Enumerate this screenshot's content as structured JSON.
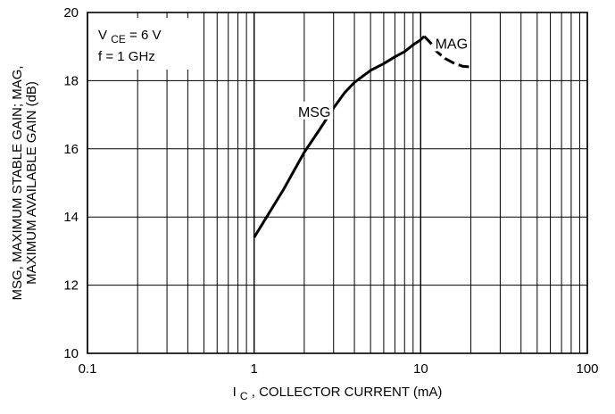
{
  "chart_data": {
    "type": "line",
    "title": "",
    "x_scale": "log",
    "xlim": [
      0.1,
      100
    ],
    "ylim": [
      10,
      20
    ],
    "grid": true,
    "xlabel": {
      "prefix": "I",
      "subscript": "C",
      "rest": ", COLLECTOR CURRENT (mA)"
    },
    "ylabel": {
      "line1": "MSG, MAXIMUM STABLE GAIN; MAG,",
      "line2": "MAXIMUM AVAILABLE GAIN (dB)"
    },
    "x_tick_labels": [
      {
        "value": 0.1,
        "label": "0.1"
      },
      {
        "value": 1,
        "label": "1"
      },
      {
        "value": 10,
        "label": "10"
      },
      {
        "value": 100,
        "label": "100"
      }
    ],
    "y_tick_labels": [
      {
        "value": 10,
        "label": "10"
      },
      {
        "value": 12,
        "label": "12"
      },
      {
        "value": 14,
        "label": "14"
      },
      {
        "value": 16,
        "label": "16"
      },
      {
        "value": 18,
        "label": "18"
      },
      {
        "value": 20,
        "label": "20"
      }
    ],
    "conditions": {
      "vce_prefix": "V",
      "vce_subscript": "CE",
      "vce_rest": " = 6 V",
      "freq": "f = 1 GHz"
    },
    "series": [
      {
        "name": "MSG",
        "style": "solid",
        "label_at": [
          2.3,
          17.1
        ],
        "points": [
          [
            1.0,
            13.4
          ],
          [
            1.5,
            14.8
          ],
          [
            2.0,
            15.9
          ],
          [
            2.5,
            16.6
          ],
          [
            3.0,
            17.2
          ],
          [
            3.5,
            17.65
          ],
          [
            4.0,
            17.95
          ],
          [
            5.0,
            18.3
          ],
          [
            6.0,
            18.5
          ],
          [
            7.0,
            18.7
          ],
          [
            8.0,
            18.85
          ],
          [
            9.0,
            19.05
          ],
          [
            10.0,
            19.2
          ],
          [
            10.5,
            19.3
          ]
        ]
      },
      {
        "name": "MAG",
        "style": "dashed",
        "label_at": [
          15.3,
          19.1
        ],
        "points": [
          [
            10.5,
            19.3
          ],
          [
            11.5,
            19.1
          ],
          [
            12.5,
            18.85
          ],
          [
            14.0,
            18.65
          ],
          [
            16.0,
            18.5
          ],
          [
            18.0,
            18.42
          ],
          [
            20.0,
            18.4
          ]
        ]
      }
    ]
  }
}
